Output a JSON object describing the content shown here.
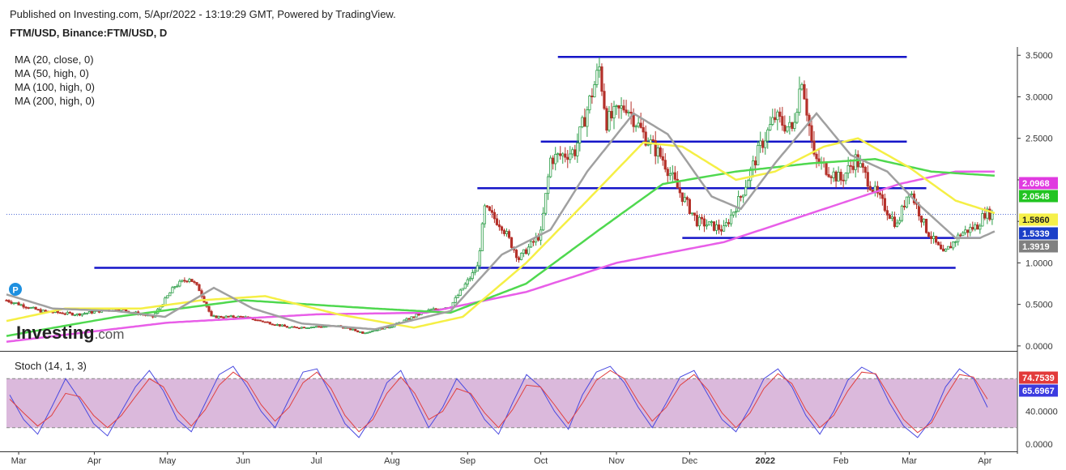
{
  "header": {
    "published": "Published on Investing.com, 5/Apr/2022 - 13:19:29 GMT, Powered by TradingView.",
    "symbol": "FTM/USD, Binance:FTM/USD, D"
  },
  "logo": {
    "main": "Investing",
    "suffix": ".com"
  },
  "ma_legend": [
    "MA (20, close, 0)",
    "MA (50, high, 0)",
    "MA (100, high, 0)",
    "MA (200, high, 0)"
  ],
  "price_marker": "P",
  "colors": {
    "up": "#2e9e49",
    "down": "#b5312a",
    "ma20": "#a0a0a0",
    "ma50": "#f5ef45",
    "ma100": "#4fd84f",
    "ma200": "#e85ee8",
    "levels": "#1515c8",
    "stoch_k": "#4a4ae0",
    "stoch_d": "#e04040",
    "stoch_band": "#dbb9dc"
  },
  "chart_data": [
    {
      "type": "candlestick",
      "title": "FTM/USD, Binance:FTM/USD, D",
      "ylim": [
        -0.05,
        3.6
      ],
      "y_ticks": [
        "0.0000",
        "0.5000",
        "1.0000",
        "1.5000",
        "2.0000",
        "2.5000",
        "3.0000",
        "3.5000"
      ],
      "x_labels": [
        "Mar",
        "Apr",
        "May",
        "Jun",
        "Jul",
        "Aug",
        "Sep",
        "Oct",
        "Nov",
        "Dec",
        "2022",
        "Feb",
        "Mar",
        "Apr"
      ],
      "x_range": [
        "2021-02-24",
        "2022-04-14"
      ],
      "price_path": [
        [
          "2021-02-24",
          0.55
        ],
        [
          "2021-03-10",
          0.42
        ],
        [
          "2021-03-25",
          0.38
        ],
        [
          "2021-04-10",
          0.45
        ],
        [
          "2021-04-25",
          0.35
        ],
        [
          "2021-05-04",
          0.72
        ],
        [
          "2021-05-10",
          0.82
        ],
        [
          "2021-05-14",
          0.68
        ],
        [
          "2021-05-19",
          0.35
        ],
        [
          "2021-06-01",
          0.35
        ],
        [
          "2021-06-20",
          0.22
        ],
        [
          "2021-07-10",
          0.24
        ],
        [
          "2021-07-20",
          0.16
        ],
        [
          "2021-08-01",
          0.24
        ],
        [
          "2021-08-15",
          0.42
        ],
        [
          "2021-08-25",
          0.48
        ],
        [
          "2021-09-05",
          0.95
        ],
        [
          "2021-09-08",
          1.65
        ],
        [
          "2021-09-15",
          1.45
        ],
        [
          "2021-09-22",
          1.05
        ],
        [
          "2021-10-01",
          1.35
        ],
        [
          "2021-10-05",
          2.25
        ],
        [
          "2021-10-15",
          2.35
        ],
        [
          "2021-10-25",
          3.35
        ],
        [
          "2021-10-28",
          2.7
        ],
        [
          "2021-11-05",
          2.9
        ],
        [
          "2021-11-12",
          2.55
        ],
        [
          "2021-11-20",
          2.25
        ],
        [
          "2021-11-26",
          1.9
        ],
        [
          "2021-12-04",
          1.5
        ],
        [
          "2021-12-15",
          1.4
        ],
        [
          "2021-12-22",
          1.8
        ],
        [
          "2021-12-30",
          2.4
        ],
        [
          "2022-01-05",
          2.75
        ],
        [
          "2022-01-12",
          2.6
        ],
        [
          "2022-01-16",
          3.25
        ],
        [
          "2022-01-21",
          2.25
        ],
        [
          "2022-02-01",
          2.0
        ],
        [
          "2022-02-07",
          2.25
        ],
        [
          "2022-02-15",
          1.85
        ],
        [
          "2022-02-24",
          1.45
        ],
        [
          "2022-03-01",
          1.9
        ],
        [
          "2022-03-08",
          1.4
        ],
        [
          "2022-03-15",
          1.1
        ],
        [
          "2022-03-22",
          1.35
        ],
        [
          "2022-03-29",
          1.45
        ],
        [
          "2022-04-01",
          1.6
        ],
        [
          "2022-04-04",
          1.58
        ]
      ],
      "ma20": [
        [
          "2021-02-24",
          0.62
        ],
        [
          "2021-03-15",
          0.45
        ],
        [
          "2021-04-10",
          0.42
        ],
        [
          "2021-04-30",
          0.35
        ],
        [
          "2021-05-20",
          0.7
        ],
        [
          "2021-06-05",
          0.45
        ],
        [
          "2021-06-25",
          0.27
        ],
        [
          "2021-07-25",
          0.2
        ],
        [
          "2021-08-25",
          0.42
        ],
        [
          "2021-09-15",
          1.1
        ],
        [
          "2021-10-05",
          1.4
        ],
        [
          "2021-10-20",
          2.1
        ],
        [
          "2021-11-08",
          2.8
        ],
        [
          "2021-11-22",
          2.55
        ],
        [
          "2021-12-10",
          1.8
        ],
        [
          "2021-12-22",
          1.65
        ],
        [
          "2022-01-05",
          2.2
        ],
        [
          "2022-01-22",
          2.8
        ],
        [
          "2022-02-05",
          2.3
        ],
        [
          "2022-02-20",
          2.1
        ],
        [
          "2022-03-05",
          1.7
        ],
        [
          "2022-03-20",
          1.3
        ],
        [
          "2022-03-30",
          1.3
        ],
        [
          "2022-04-05",
          1.38
        ]
      ],
      "ma50": [
        [
          "2021-02-24",
          0.3
        ],
        [
          "2021-03-20",
          0.45
        ],
        [
          "2021-04-20",
          0.45
        ],
        [
          "2021-05-15",
          0.55
        ],
        [
          "2021-06-10",
          0.6
        ],
        [
          "2021-07-10",
          0.38
        ],
        [
          "2021-08-10",
          0.22
        ],
        [
          "2021-08-30",
          0.35
        ],
        [
          "2021-09-25",
          1.0
        ],
        [
          "2021-10-20",
          1.75
        ],
        [
          "2021-11-12",
          2.45
        ],
        [
          "2021-11-28",
          2.4
        ],
        [
          "2021-12-20",
          2.0
        ],
        [
          "2022-01-05",
          2.1
        ],
        [
          "2022-01-25",
          2.4
        ],
        [
          "2022-02-08",
          2.5
        ],
        [
          "2022-03-01",
          2.15
        ],
        [
          "2022-03-20",
          1.75
        ],
        [
          "2022-04-05",
          1.6
        ]
      ],
      "ma100": [
        [
          "2021-02-24",
          0.12
        ],
        [
          "2021-04-10",
          0.35
        ],
        [
          "2021-06-01",
          0.55
        ],
        [
          "2021-07-25",
          0.45
        ],
        [
          "2021-08-25",
          0.4
        ],
        [
          "2021-09-25",
          0.75
        ],
        [
          "2021-10-25",
          1.4
        ],
        [
          "2021-11-20",
          1.95
        ],
        [
          "2021-12-20",
          2.1
        ],
        [
          "2022-01-20",
          2.2
        ],
        [
          "2022-02-15",
          2.25
        ],
        [
          "2022-03-10",
          2.1
        ],
        [
          "2022-04-05",
          2.05
        ]
      ],
      "ma200": [
        [
          "2021-02-24",
          0.05
        ],
        [
          "2021-05-01",
          0.28
        ],
        [
          "2021-07-01",
          0.38
        ],
        [
          "2021-08-15",
          0.4
        ],
        [
          "2021-09-25",
          0.65
        ],
        [
          "2021-11-01",
          1.0
        ],
        [
          "2021-12-15",
          1.25
        ],
        [
          "2022-01-20",
          1.6
        ],
        [
          "2022-02-25",
          1.95
        ],
        [
          "2022-03-20",
          2.1
        ],
        [
          "2022-04-05",
          2.1
        ]
      ],
      "levels": [
        {
          "price": 3.48,
          "from": "2021-10-08",
          "to": "2022-02-28"
        },
        {
          "price": 2.46,
          "from": "2021-10-01",
          "to": "2022-02-28"
        },
        {
          "price": 1.9,
          "from": "2021-09-05",
          "to": "2022-03-08"
        },
        {
          "price": 1.3,
          "from": "2021-11-28",
          "to": "2022-03-30"
        },
        {
          "price": 0.94,
          "from": "2021-04-01",
          "to": "2022-03-20"
        }
      ],
      "last_price": 1.586,
      "price_labels": [
        {
          "text": "2.0968",
          "value": 2.0968,
          "bg": "#e03ae0",
          "fg": "#ffffff"
        },
        {
          "text": "2.0548",
          "value": 2.0548,
          "bg": "#22c422",
          "fg": "#ffffff"
        },
        {
          "text": "1.5860",
          "value": 1.586,
          "bg": "#f6f04a",
          "fg": "#222222"
        },
        {
          "text": "1.5339",
          "value": 1.5339,
          "bg": "#1b3fc8",
          "fg": "#ffffff"
        },
        {
          "text": "1.3919",
          "value": 1.3919,
          "bg": "#808080",
          "fg": "#ffffff"
        }
      ]
    },
    {
      "type": "line",
      "title": "Stoch (14, 1, 3)",
      "ylim": [
        -8,
        112
      ],
      "y_ticks": [
        "0.0000",
        "40.0000"
      ],
      "band": [
        20,
        80
      ],
      "x_range": [
        "2021-02-24",
        "2022-04-14"
      ],
      "series": [
        {
          "name": "%K",
          "values": [
            60,
            30,
            12,
            45,
            80,
            55,
            25,
            10,
            40,
            70,
            90,
            65,
            30,
            15,
            50,
            85,
            95,
            70,
            40,
            20,
            55,
            88,
            92,
            60,
            25,
            8,
            35,
            75,
            90,
            55,
            20,
            45,
            80,
            60,
            30,
            12,
            50,
            85,
            70,
            40,
            18,
            60,
            88,
            95,
            75,
            45,
            20,
            50,
            82,
            90,
            60,
            30,
            15,
            45,
            80,
            92,
            70,
            35,
            12,
            40,
            78,
            94,
            85,
            50,
            22,
            8,
            30,
            70,
            92,
            80,
            45
          ]
        },
        {
          "name": "%D",
          "values": [
            55,
            38,
            22,
            35,
            62,
            58,
            35,
            20,
            35,
            58,
            80,
            70,
            40,
            22,
            42,
            72,
            88,
            76,
            48,
            28,
            45,
            75,
            88,
            68,
            35,
            15,
            30,
            62,
            82,
            62,
            30,
            40,
            68,
            62,
            38,
            20,
            42,
            72,
            70,
            48,
            25,
            50,
            78,
            90,
            80,
            52,
            28,
            45,
            72,
            85,
            66,
            38,
            20,
            38,
            68,
            86,
            74,
            42,
            20,
            35,
            65,
            88,
            86,
            58,
            30,
            14,
            26,
            58,
            85,
            82,
            55
          ]
        }
      ],
      "price_labels": [
        {
          "text": "74.7539",
          "value": 74.7539,
          "bg": "#e23a3a",
          "fg": "#ffffff"
        },
        {
          "text": "65.6967",
          "value": 65.6967,
          "bg": "#3b3be0",
          "fg": "#ffffff"
        }
      ]
    }
  ]
}
